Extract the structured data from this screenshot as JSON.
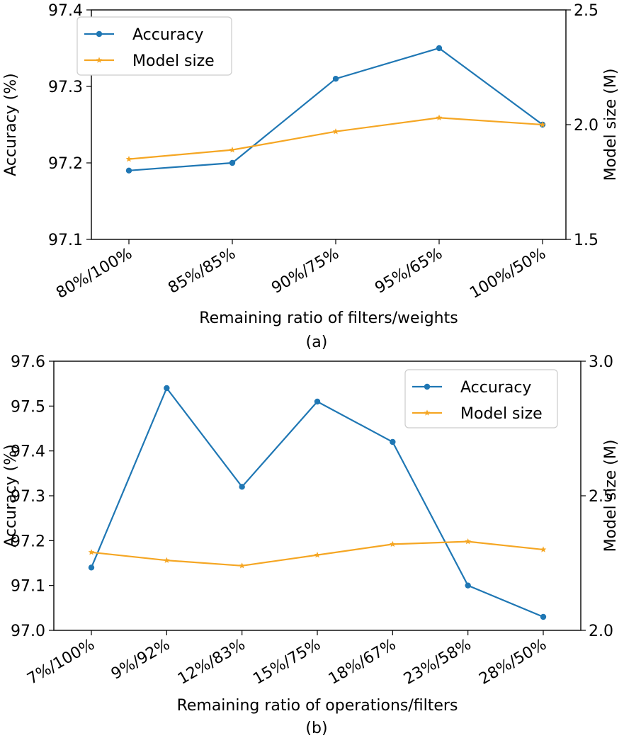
{
  "chart_data": [
    {
      "type": "line",
      "caption": "(a)",
      "xlabel": "Remaining ratio of filters/weights",
      "ylabel_left": "Accuracy (%)",
      "ylabel_right": "Model size (M)",
      "categories": [
        "80%/100%",
        "85%/85%",
        "90%/75%",
        "95%/65%",
        "100%/50%"
      ],
      "ylim_left": [
        97.1,
        97.4
      ],
      "ylim_right": [
        1.5,
        2.5
      ],
      "yticks_left": [
        "97.1",
        "97.2",
        "97.3",
        "97.4"
      ],
      "yticks_right": [
        "1.5",
        "2.0",
        "2.5"
      ],
      "legend_position": "top-left",
      "series": [
        {
          "name": "Accuracy",
          "axis": "left",
          "color": "#1f77b4",
          "marker": "circle",
          "values": [
            97.19,
            97.2,
            97.31,
            97.35,
            97.25
          ]
        },
        {
          "name": "Model size",
          "axis": "right",
          "color": "#f5a623",
          "marker": "star",
          "values": [
            1.85,
            1.89,
            1.97,
            2.03,
            2.0
          ]
        }
      ]
    },
    {
      "type": "line",
      "caption": "(b)",
      "xlabel": "Remaining ratio of operations/filters",
      "ylabel_left": "Accuracy (%)",
      "ylabel_right": "Model size (M)",
      "categories": [
        "7%/100%",
        "9%/92%",
        "12%/83%",
        "15%/75%",
        "18%/67%",
        "23%/58%",
        "28%/50%"
      ],
      "ylim_left": [
        97.0,
        97.6
      ],
      "ylim_right": [
        2.0,
        3.0
      ],
      "yticks_left": [
        "97.0",
        "97.1",
        "97.2",
        "97.3",
        "97.4",
        "97.5",
        "97.6"
      ],
      "yticks_right": [
        "2.0",
        "2.5",
        "3.0"
      ],
      "legend_position": "top-right",
      "series": [
        {
          "name": "Accuracy",
          "axis": "left",
          "color": "#1f77b4",
          "marker": "circle",
          "values": [
            97.14,
            97.54,
            97.32,
            97.51,
            97.42,
            97.1,
            97.03
          ]
        },
        {
          "name": "Model size",
          "axis": "right",
          "color": "#f5a623",
          "marker": "star",
          "values": [
            2.29,
            2.26,
            2.24,
            2.28,
            2.32,
            2.33,
            2.3
          ]
        }
      ]
    }
  ]
}
